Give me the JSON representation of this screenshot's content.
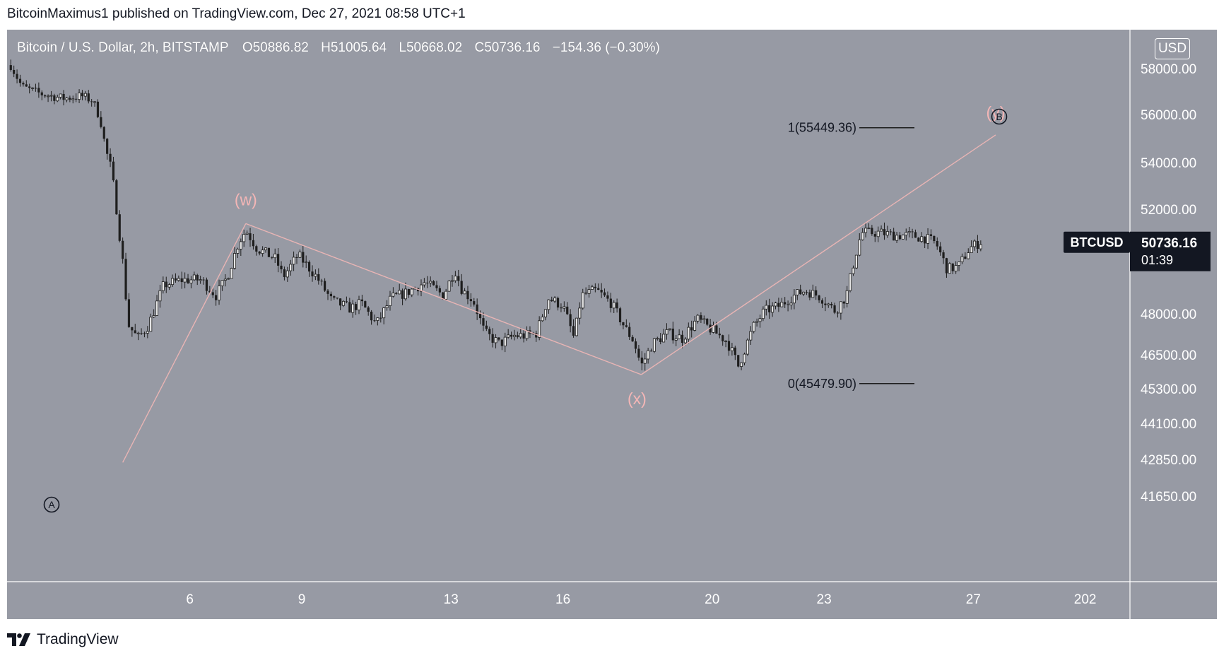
{
  "header": {
    "text": "BitcoinMaximus1 published on TradingView.com, Dec 27, 2021 08:58 UTC+1"
  },
  "legend": {
    "symbol": "Bitcoin / U.S. Dollar, 2h, BITSTAMP",
    "open": "O50886.82",
    "high": "H51005.64",
    "low": "L50668.02",
    "close": "C50736.16",
    "change": "−154.36 (−0.30%)"
  },
  "currency_button": "USD",
  "price_tag": {
    "symbol": "BTCUSD",
    "price": "50736.16",
    "countdown": "01:39"
  },
  "fib_labels": {
    "one": "1(55449.36)",
    "zero": "0(45479.90)"
  },
  "wave_labels": {
    "w": "(w)",
    "x": "(x)",
    "y": "(y)",
    "A": "A",
    "B": "B"
  },
  "footer": {
    "brand": "TradingView"
  },
  "colors": {
    "background": "#979aa4",
    "candle": "#1e1e1e",
    "wave_line": "#e8b4b4",
    "wave_label": "#f4b6b6",
    "text_white": "#ffffff"
  },
  "chart_data": {
    "type": "candlestick",
    "symbol": "BTCUSD",
    "interval": "2h",
    "exchange": "BITSTAMP",
    "x_tick_labels": [
      "6",
      "9",
      "13",
      "16",
      "20",
      "23",
      "27",
      "202"
    ],
    "x_ticks_day": [
      6,
      9,
      13,
      16,
      20,
      23,
      27,
      30
    ],
    "y_ticks": [
      58000,
      56000,
      54000,
      52000,
      48000,
      46500,
      45300,
      44100,
      42850,
      41650
    ],
    "y_tick_labels": [
      "58000.00",
      "56000.00",
      "54000.00",
      "52000.00",
      "48000.00",
      "46500.00",
      "45300.00",
      "44100.00",
      "42850.00",
      "41650.00"
    ],
    "x_range_day": [
      1.1,
      31.2
    ],
    "wave_path": [
      {
        "label": "A",
        "day": 4.2,
        "price": 42750
      },
      {
        "label": "w",
        "day": 7.5,
        "price": 51450
      },
      {
        "label": "x",
        "day": 18.1,
        "price": 45800
      },
      {
        "label": "y",
        "day": 27.6,
        "price": 55150
      }
    ],
    "fib_levels": [
      {
        "ratio": "1",
        "price": 55449.36
      },
      {
        "ratio": "0",
        "price": 45479.9
      }
    ],
    "current_price": 50736.16,
    "close_anchors": [
      [
        1.2,
        58150
      ],
      [
        1.5,
        57200
      ],
      [
        2.0,
        56900
      ],
      [
        2.6,
        56700
      ],
      [
        3.1,
        56800
      ],
      [
        3.4,
        56600
      ],
      [
        3.6,
        55800
      ],
      [
        3.75,
        54500
      ],
      [
        3.9,
        53700
      ],
      [
        4.05,
        51800
      ],
      [
        4.2,
        50000
      ],
      [
        4.35,
        47600
      ],
      [
        4.6,
        47100
      ],
      [
        4.9,
        47600
      ],
      [
        5.3,
        49100
      ],
      [
        5.8,
        49300
      ],
      [
        6.3,
        49300
      ],
      [
        6.7,
        48700
      ],
      [
        7.0,
        49400
      ],
      [
        7.3,
        50700
      ],
      [
        7.5,
        51200
      ],
      [
        7.8,
        50500
      ],
      [
        8.3,
        50100
      ],
      [
        8.5,
        49400
      ],
      [
        8.9,
        50250
      ],
      [
        9.4,
        49400
      ],
      [
        9.8,
        48500
      ],
      [
        10.3,
        48200
      ],
      [
        10.6,
        48400
      ],
      [
        11.0,
        47600
      ],
      [
        11.4,
        48600
      ],
      [
        11.8,
        48800
      ],
      [
        12.3,
        49200
      ],
      [
        12.8,
        48700
      ],
      [
        13.1,
        49700
      ],
      [
        13.3,
        48900
      ],
      [
        13.6,
        48500
      ],
      [
        13.9,
        47300
      ],
      [
        14.3,
        46900
      ],
      [
        14.7,
        47200
      ],
      [
        15.0,
        47200
      ],
      [
        15.3,
        47300
      ],
      [
        15.6,
        48600
      ],
      [
        16.0,
        48300
      ],
      [
        16.3,
        47100
      ],
      [
        16.5,
        48700
      ],
      [
        16.9,
        48900
      ],
      [
        17.3,
        48400
      ],
      [
        17.7,
        47400
      ],
      [
        17.9,
        47000
      ],
      [
        18.1,
        46100
      ],
      [
        18.4,
        46900
      ],
      [
        18.8,
        47300
      ],
      [
        19.2,
        47100
      ],
      [
        19.6,
        47800
      ],
      [
        20.0,
        47400
      ],
      [
        20.4,
        47000
      ],
      [
        20.7,
        46100
      ],
      [
        21.1,
        47500
      ],
      [
        21.4,
        48100
      ],
      [
        21.8,
        48300
      ],
      [
        22.2,
        48700
      ],
      [
        22.5,
        48900
      ],
      [
        22.9,
        48650
      ],
      [
        23.3,
        48100
      ],
      [
        23.6,
        48700
      ],
      [
        23.8,
        50000
      ],
      [
        24.0,
        51100
      ],
      [
        24.5,
        51100
      ],
      [
        24.9,
        51000
      ],
      [
        25.3,
        51000
      ],
      [
        25.7,
        50900
      ],
      [
        26.0,
        50700
      ],
      [
        26.3,
        49700
      ],
      [
        26.6,
        49800
      ],
      [
        26.9,
        50500
      ],
      [
        27.2,
        50750
      ]
    ]
  }
}
